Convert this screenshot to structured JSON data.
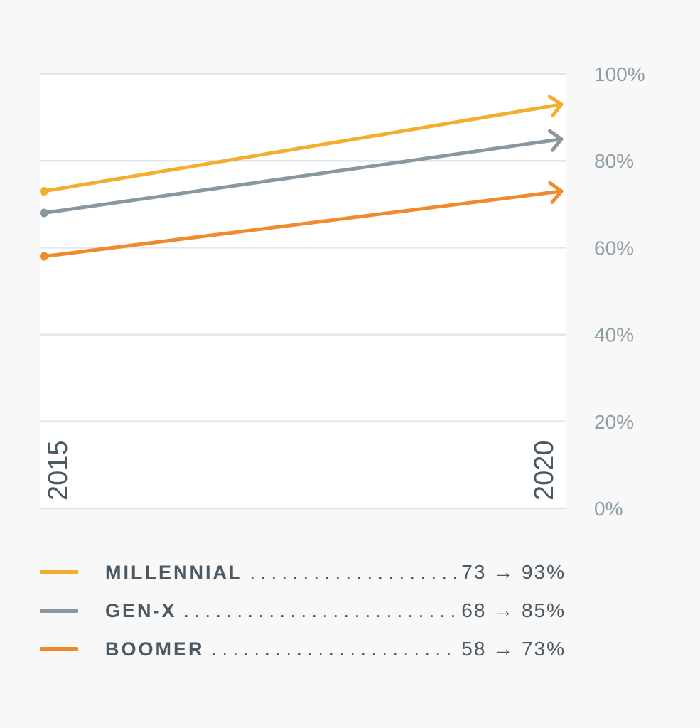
{
  "chart_data": {
    "type": "line",
    "x": [
      "2015",
      "2020"
    ],
    "y_ticks": [
      "0%",
      "20%",
      "40%",
      "60%",
      "80%",
      "100%"
    ],
    "ylim": [
      0,
      100
    ],
    "grid": true,
    "legend_position": "bottom",
    "series": [
      {
        "name": "MILLENNIAL",
        "values": [
          73,
          93
        ],
        "color": "#f5ad2e",
        "legend_value": "73 → 93%"
      },
      {
        "name": "GEN-X",
        "values": [
          68,
          85
        ],
        "color": "#8a979e",
        "legend_value": "68 → 85%"
      },
      {
        "name": "BOOMER",
        "values": [
          58,
          73
        ],
        "color": "#ef8a2f",
        "legend_value": "58 → 73%"
      }
    ]
  }
}
